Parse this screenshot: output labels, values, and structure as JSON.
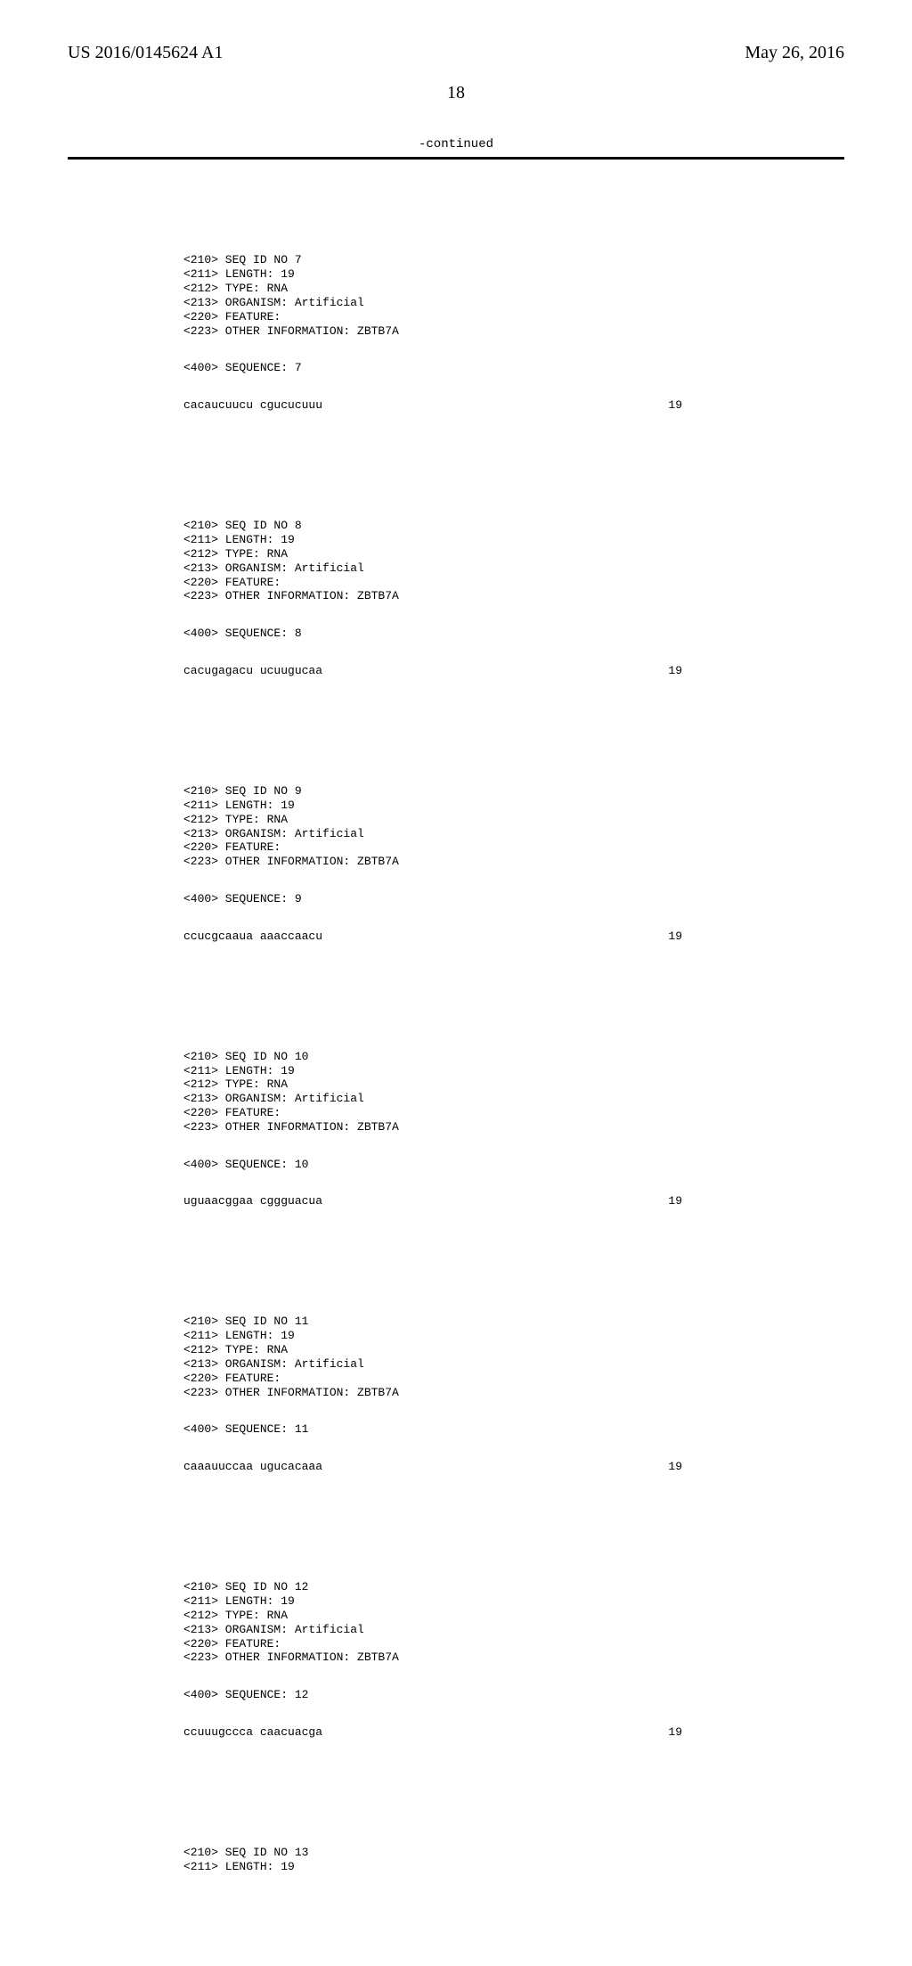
{
  "header": {
    "pub_number": "US 2016/0145624 A1",
    "pub_date": "May 26, 2016"
  },
  "page_number": "18",
  "continued_label": "-continued",
  "entries": [
    {
      "meta": [
        "<210> SEQ ID NO 7",
        "<211> LENGTH: 19",
        "<212> TYPE: RNA",
        "<213> ORGANISM: Artificial",
        "<220> FEATURE:",
        "<223> OTHER INFORMATION: ZBTB7A"
      ],
      "label": "<400> SEQUENCE: 7",
      "sequence": "cacaucuucu cgucucuuu",
      "seqlen": "19"
    },
    {
      "meta": [
        "<210> SEQ ID NO 8",
        "<211> LENGTH: 19",
        "<212> TYPE: RNA",
        "<213> ORGANISM: Artificial",
        "<220> FEATURE:",
        "<223> OTHER INFORMATION: ZBTB7A"
      ],
      "label": "<400> SEQUENCE: 8",
      "sequence": "cacugagacu ucuugucaa",
      "seqlen": "19"
    },
    {
      "meta": [
        "<210> SEQ ID NO 9",
        "<211> LENGTH: 19",
        "<212> TYPE: RNA",
        "<213> ORGANISM: Artificial",
        "<220> FEATURE:",
        "<223> OTHER INFORMATION: ZBTB7A"
      ],
      "label": "<400> SEQUENCE: 9",
      "sequence": "ccucgcaaua aaaccaacu",
      "seqlen": "19"
    },
    {
      "meta": [
        "<210> SEQ ID NO 10",
        "<211> LENGTH: 19",
        "<212> TYPE: RNA",
        "<213> ORGANISM: Artificial",
        "<220> FEATURE:",
        "<223> OTHER INFORMATION: ZBTB7A"
      ],
      "label": "<400> SEQUENCE: 10",
      "sequence": "uguaacggaa cggguacua",
      "seqlen": "19"
    },
    {
      "meta": [
        "<210> SEQ ID NO 11",
        "<211> LENGTH: 19",
        "<212> TYPE: RNA",
        "<213> ORGANISM: Artificial",
        "<220> FEATURE:",
        "<223> OTHER INFORMATION: ZBTB7A"
      ],
      "label": "<400> SEQUENCE: 11",
      "sequence": "caaauuccaa ugucacaaa",
      "seqlen": "19"
    },
    {
      "meta": [
        "<210> SEQ ID NO 12",
        "<211> LENGTH: 19",
        "<212> TYPE: RNA",
        "<213> ORGANISM: Artificial",
        "<220> FEATURE:",
        "<223> OTHER INFORMATION: ZBTB7A"
      ],
      "label": "<400> SEQUENCE: 12",
      "sequence": "ccuuugccca caacuacga",
      "seqlen": "19"
    },
    {
      "meta": [
        "<210> SEQ ID NO 13",
        "<211> LENGTH: 19"
      ],
      "label": "",
      "sequence": "",
      "seqlen": ""
    }
  ]
}
